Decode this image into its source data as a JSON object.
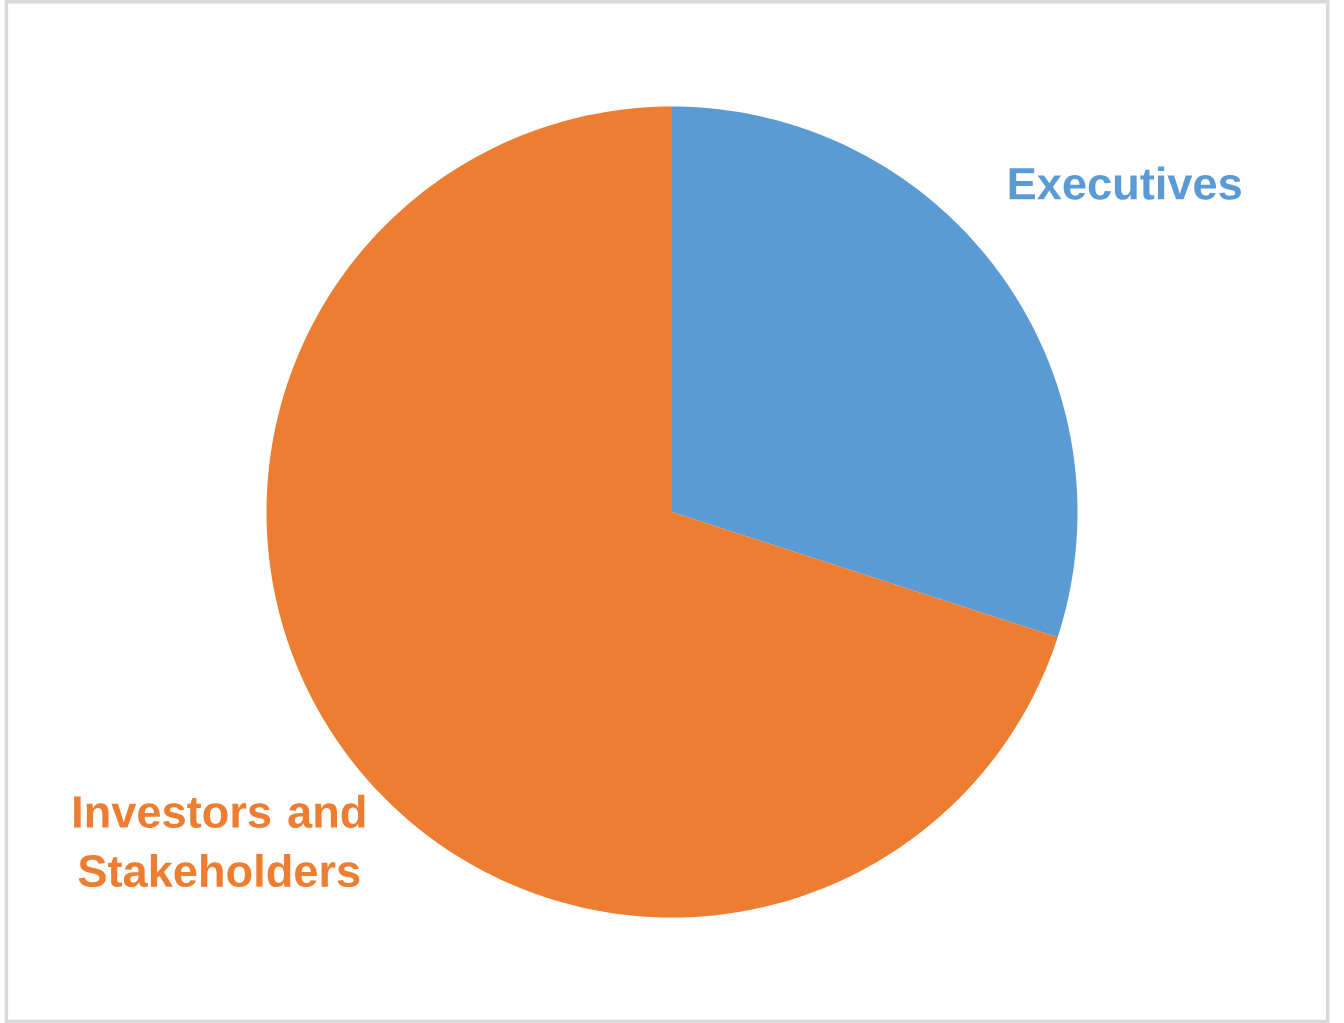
{
  "chart_data": {
    "type": "pie",
    "categories": [
      "Executives",
      "Investors and Stakeholders"
    ],
    "values": [
      30,
      70
    ],
    "colors": [
      "#5b9bd5",
      "#ed7d31"
    ]
  }
}
